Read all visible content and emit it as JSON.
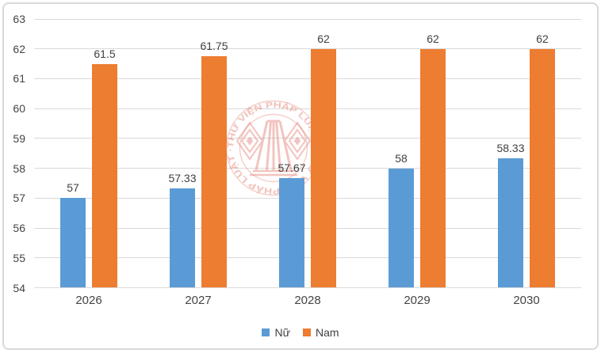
{
  "watermark": {
    "text": "THƯ VIỆN PHÁP LUẬT",
    "separator": "·",
    "color": "#E78B80"
  },
  "chart_data": {
    "type": "bar",
    "title": "",
    "xlabel": "",
    "ylabel": "",
    "categories": [
      "2026",
      "2027",
      "2028",
      "2029",
      "2030"
    ],
    "series": [
      {
        "name": "Nữ",
        "color": "#5B9BD5",
        "values": [
          57,
          57.33,
          57.67,
          58,
          58.33
        ],
        "labels": [
          "57",
          "57.33",
          "57.67",
          "58",
          "58.33"
        ]
      },
      {
        "name": "Nam",
        "color": "#ED7D31",
        "values": [
          61.5,
          61.75,
          62,
          62,
          62
        ],
        "labels": [
          "61.5",
          "61.75",
          "62",
          "62",
          "62"
        ]
      }
    ],
    "ylim": [
      54,
      63
    ],
    "ytick_step": 1,
    "grid": true,
    "legend_position": "bottom",
    "colors": {
      "grid": "#D9D9D9",
      "frame_border": "#D9D9D9",
      "text": "#404040",
      "background": "#FFFFFF"
    }
  }
}
